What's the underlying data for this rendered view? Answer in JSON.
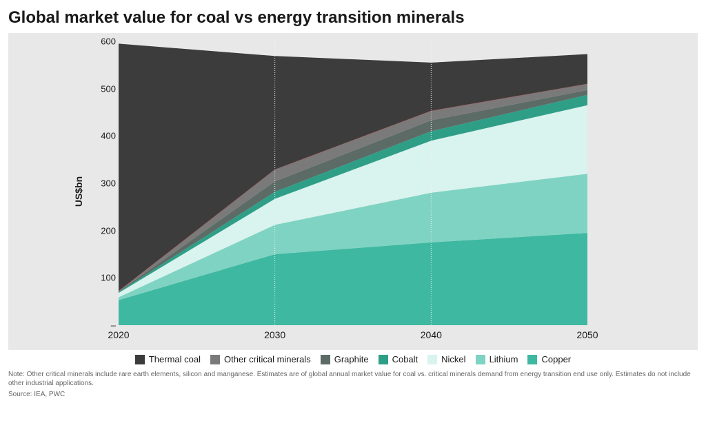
{
  "title": "Global market value for coal vs energy transition minerals",
  "chart": {
    "type": "area-stacked",
    "background_color": "#e8e8e8",
    "plot_background": "transparent",
    "ylabel": "US$bn",
    "ylabel_fontsize": 14,
    "ylim": [
      0,
      600
    ],
    "ytick_step": 100,
    "yticks": [
      0,
      100,
      200,
      300,
      400,
      500,
      600
    ],
    "ytick_zero_label": "–",
    "x_categories": [
      "2020",
      "2030",
      "2040",
      "2050"
    ],
    "x_positions_pct": [
      0,
      33.333,
      66.667,
      100
    ],
    "gridlines_x": true,
    "gridline_style": "dotted",
    "gridline_color": "#f2f2f2",
    "legend_position": "bottom-center",
    "outline_color": "#c94f4f",
    "series": [
      {
        "name": "Copper",
        "color": "#3eb8a1",
        "values": [
          53,
          150,
          175,
          195
        ]
      },
      {
        "name": "Lithium",
        "color": "#7fd3c2",
        "values": [
          6,
          62,
          105,
          125
        ]
      },
      {
        "name": "Nickel",
        "color": "#d9f3ee",
        "values": [
          9,
          55,
          110,
          145
        ]
      },
      {
        "name": "Cobalt",
        "color": "#2f9e87",
        "values": [
          2,
          15,
          20,
          22
        ]
      },
      {
        "name": "Graphite",
        "color": "#5c6b66",
        "values": [
          1,
          22,
          23,
          10
        ]
      },
      {
        "name": "Other critical minerals",
        "color": "#7a7a7a",
        "values": [
          1,
          25,
          20,
          13
        ]
      },
      {
        "name": "Thermal coal",
        "color": "#3c3c3c",
        "values": [
          523,
          240,
          102,
          63
        ]
      }
    ],
    "legend_order": [
      "Thermal coal",
      "Other critical minerals",
      "Graphite",
      "Cobalt",
      "Nickel",
      "Lithium",
      "Copper"
    ],
    "axis_fontsize": 13
  },
  "footnote": "Note: Other critical minerals include rare earth elements, silicon and manganese. Estimates are of global annual market value for coal vs. critical minerals demand from energy transition end use only. Estimates do not include other industrial applications.",
  "source": "Source:  IEA, PWC"
}
